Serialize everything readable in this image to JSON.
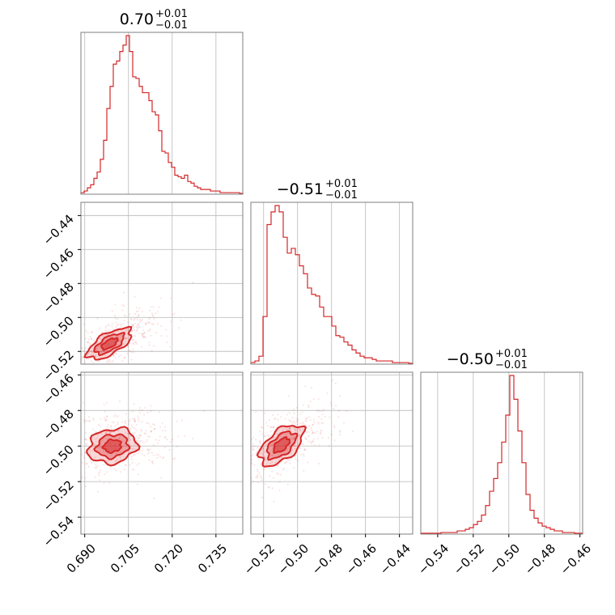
{
  "chart_data": {
    "type": "corner",
    "color": "#d62728",
    "parameters": [
      {
        "title": {
          "median": "0.70",
          "upper": "+0.01",
          "lower": "−0.01"
        },
        "ticks": [
          0.69,
          0.705,
          0.72,
          0.735
        ],
        "tick_labels": [
          "0.690",
          "0.705",
          "0.720",
          "0.735"
        ],
        "range": [
          0.6887,
          0.7442
        ],
        "hist": [
          0.01,
          0.02,
          0.04,
          0.06,
          0.1,
          0.14,
          0.22,
          0.34,
          0.54,
          0.68,
          0.82,
          0.84,
          0.9,
          0.94,
          1.0,
          0.9,
          0.74,
          0.73,
          0.68,
          0.64,
          0.64,
          0.59,
          0.52,
          0.5,
          0.4,
          0.27,
          0.26,
          0.2,
          0.17,
          0.12,
          0.11,
          0.1,
          0.12,
          0.08,
          0.07,
          0.05,
          0.04,
          0.03,
          0.03,
          0.03,
          0.02,
          0.02,
          0.02,
          0.01,
          0.01,
          0.01,
          0.01,
          0.01,
          0.01,
          0.005
        ]
      },
      {
        "title": {
          "median": "−0.51",
          "upper": "+0.01",
          "lower": "−0.01"
        },
        "ticks": [
          -0.52,
          -0.5,
          -0.48,
          -0.46,
          -0.44
        ],
        "tick_labels": [
          "−0.52",
          "−0.50",
          "−0.48",
          "−0.46",
          "−0.44"
        ],
        "range": [
          -0.5275,
          -0.4322
        ],
        "hist": [
          0.01,
          0.02,
          0.05,
          0.3,
          0.88,
          0.96,
          1.0,
          0.96,
          0.8,
          0.7,
          0.73,
          0.69,
          0.62,
          0.57,
          0.48,
          0.44,
          0.43,
          0.36,
          0.3,
          0.3,
          0.24,
          0.18,
          0.17,
          0.14,
          0.12,
          0.09,
          0.07,
          0.05,
          0.04,
          0.04,
          0.03,
          0.02,
          0.02,
          0.02,
          0.02,
          0.01,
          0.01,
          0.01,
          0.01,
          0.005
        ]
      },
      {
        "title": {
          "median": "−0.50",
          "upper": "+0.01",
          "lower": "−0.01"
        },
        "ticks": [
          -0.54,
          -0.52,
          -0.5,
          -0.48,
          -0.46
        ],
        "tick_labels": [
          "−0.54",
          "−0.52",
          "−0.50",
          "−0.48",
          "−0.46"
        ],
        "range": [
          -0.5495,
          -0.4585
        ],
        "hist": [
          0.005,
          0.005,
          0.005,
          0.005,
          0.005,
          0.01,
          0.01,
          0.01,
          0.01,
          0.02,
          0.02,
          0.03,
          0.04,
          0.06,
          0.08,
          0.12,
          0.18,
          0.27,
          0.35,
          0.45,
          0.58,
          0.75,
          1.0,
          0.85,
          0.65,
          0.45,
          0.25,
          0.15,
          0.1,
          0.07,
          0.05,
          0.04,
          0.03,
          0.02,
          0.02,
          0.01,
          0.01,
          0.01,
          0.005,
          0.005
        ]
      }
    ],
    "contours": {
      "1_0": {
        "center": [
          0.6985,
          -0.5155
        ],
        "sigma": [
          0.005,
          0.006
        ],
        "rho": 0.65,
        "levels": [
          2.3,
          1.0,
          0.3
        ]
      },
      "2_0": {
        "center": [
          0.6995,
          -0.5
        ],
        "sigma": [
          0.0055,
          0.0065
        ],
        "rho": 0.15,
        "levels": [
          2.3,
          1.0,
          0.3
        ]
      },
      "2_1": {
        "center": [
          -0.5095,
          -0.4995
        ],
        "sigma": [
          0.0085,
          0.0075
        ],
        "rho": 0.55,
        "levels": [
          2.3,
          1.0,
          0.3
        ]
      }
    },
    "grid": true,
    "legend": "none"
  }
}
